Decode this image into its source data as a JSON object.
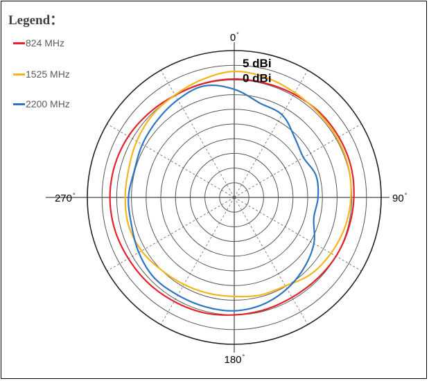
{
  "legend": {
    "title": "Legend：",
    "items": [
      {
        "label": "824 MHz",
        "color": "#e3222b"
      },
      {
        "label": "1525 MHz",
        "color": "#f5b51c"
      },
      {
        "label": "2200 MHz",
        "color": "#2d74c4"
      }
    ]
  },
  "chart_data": {
    "type": "polar",
    "angle_labels": [
      {
        "text": "0",
        "angle": 0
      },
      {
        "text": "90",
        "angle": 90
      },
      {
        "text": "180",
        "angle": 180
      },
      {
        "text": "270",
        "angle": 270
      }
    ],
    "degree_symbol": "°",
    "ref_labels": [
      {
        "text": "5 dBi",
        "level": 5
      },
      {
        "text": "0 dBi",
        "level": 0
      }
    ],
    "radial_rings_dbi": [
      -35,
      -30,
      -25,
      -20,
      -15,
      -10,
      -5,
      0,
      5,
      10
    ],
    "spokes_every_deg": 30,
    "series": [
      {
        "name": "824 MHz",
        "color": "#e3222b",
        "angles": [
          0,
          15,
          30,
          45,
          60,
          75,
          90,
          105,
          120,
          135,
          150,
          165,
          180,
          195,
          210,
          225,
          240,
          255,
          270,
          285,
          300,
          315,
          330,
          345
        ],
        "values": [
          0.3,
          0.3,
          0.6,
          1.0,
          1.1,
          1.1,
          0.7,
          0.3,
          0.0,
          -0.5,
          -0.7,
          -0.4,
          0.0,
          0.6,
          0.9,
          1.3,
          1.6,
          2.1,
          2.3,
          2.1,
          1.6,
          0.8,
          0.2,
          0.2
        ]
      },
      {
        "name": "1525 MHz",
        "color": "#f5b51c",
        "angles": [
          0,
          15,
          30,
          45,
          60,
          75,
          90,
          105,
          120,
          135,
          150,
          165,
          180,
          195,
          210,
          225,
          240,
          255,
          270,
          285,
          300,
          315,
          330,
          345
        ],
        "values": [
          2.9,
          2.2,
          1.2,
          0.6,
          0.4,
          0.2,
          -0.3,
          -1.0,
          -2.0,
          -3.1,
          -5.2,
          -5.6,
          -6.3,
          -6.2,
          -5.8,
          -5.0,
          -3.6,
          -2.8,
          -2.9,
          -2.8,
          -1.7,
          -0.5,
          0.3,
          1.6
        ]
      },
      {
        "name": "2200 MHz",
        "color": "#2d74c4",
        "angles": [
          0,
          15,
          30,
          45,
          60,
          75,
          90,
          105,
          120,
          135,
          150,
          165,
          180,
          195,
          210,
          225,
          240,
          255,
          270,
          285,
          300,
          315,
          330,
          345
        ],
        "values": [
          -3.2,
          -6.7,
          -7.5,
          -11.0,
          -12.8,
          -11.2,
          -11.5,
          -12.0,
          -8.7,
          -6.3,
          -4.1,
          -2.3,
          -1.4,
          -1.5,
          -1.6,
          -1.4,
          -2.5,
          -3.8,
          -4.0,
          -4.8,
          -3.9,
          -2.9,
          -1.6,
          -0.7
        ]
      }
    ]
  }
}
